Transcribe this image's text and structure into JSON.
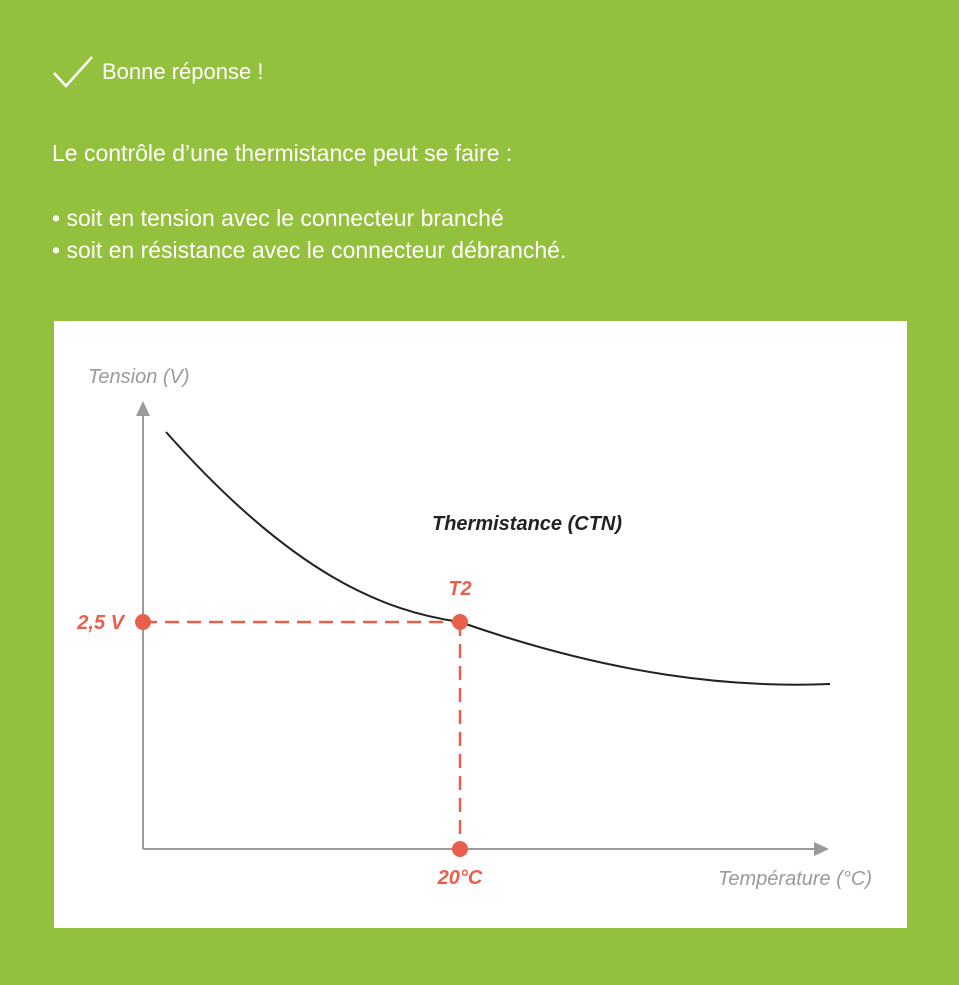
{
  "feedback": {
    "label": "Bonne réponse !",
    "icon": "checkmark-icon",
    "color": "#ffffff"
  },
  "intro": "Le contrôle d’une thermistance peut se faire :",
  "bullets": [
    "soit en tension avec le connecteur branché",
    "soit en résistance avec le connecteur débranché."
  ],
  "colors": {
    "background": "#94c13d",
    "panel": "#ffffff",
    "accent": "#e8604c",
    "axis": "#9a9a9a",
    "curve": "#222222"
  },
  "chart_data": {
    "type": "line",
    "ylabel": "Tension (V)",
    "xlabel": "Température (°C)",
    "curve_label": "Thermistance (CTN)",
    "series": [
      {
        "name": "Thermistance (CTN)",
        "shape": "decreasing"
      }
    ],
    "marker": {
      "label": "T2",
      "x_label": "20°C",
      "y_label": "2,5 V",
      "x": 20,
      "y": 2.5
    }
  }
}
